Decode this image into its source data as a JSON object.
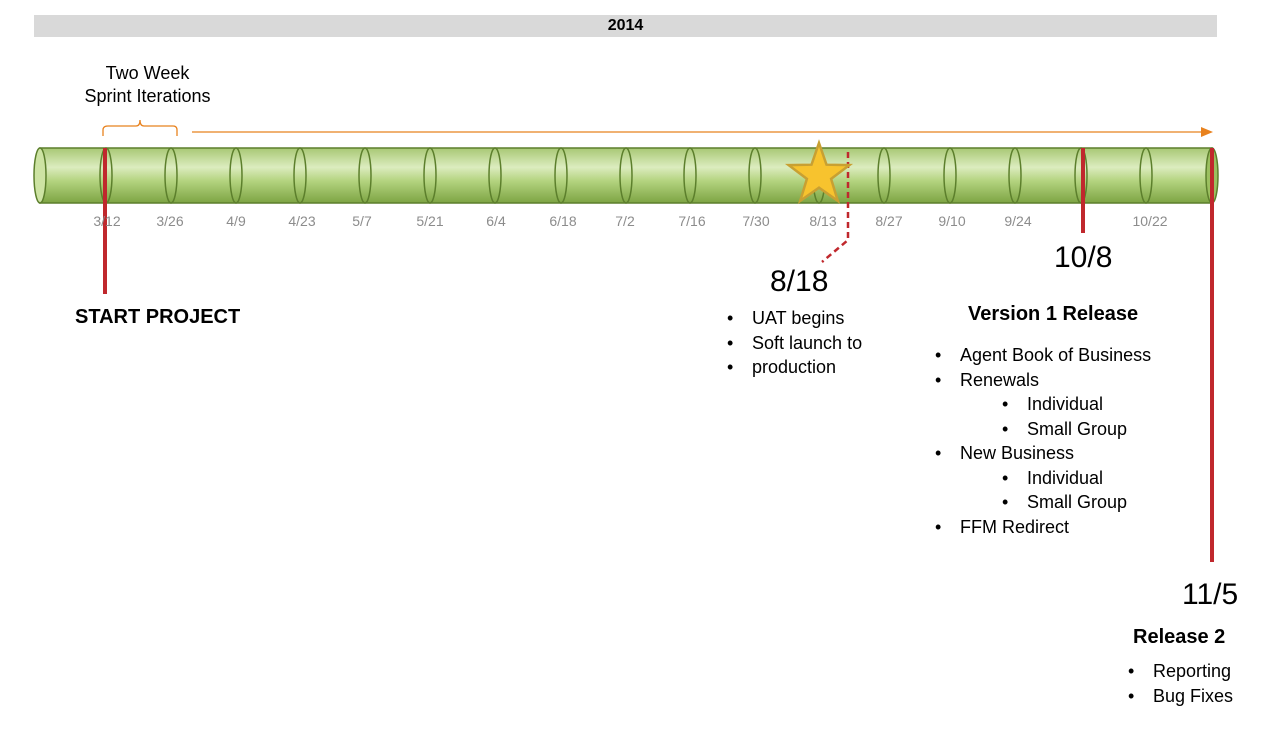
{
  "header": {
    "year": "2014"
  },
  "sprint": {
    "label_line1": "Two Week",
    "label_line2": "Sprint Iterations"
  },
  "timeline": {
    "tick_labels": [
      "3/12",
      "3/26",
      "4/9",
      "4/23",
      "5/7",
      "5/21",
      "6/4",
      "6/18",
      "7/2",
      "7/16",
      "7/30",
      "8/13",
      "8/27",
      "9/10",
      "9/24",
      "10/22"
    ]
  },
  "milestones": {
    "start": {
      "title": "START PROJECT"
    },
    "uat": {
      "date": "8/18",
      "items": [
        "UAT begins",
        "Soft launch to",
        "production"
      ]
    },
    "v1": {
      "date": "10/8",
      "title": "Version 1 Release",
      "items": [
        {
          "text": "Agent Book of Business",
          "level": 1
        },
        {
          "text": "Renewals",
          "level": 1
        },
        {
          "text": "Individual",
          "level": 2
        },
        {
          "text": "Small Group",
          "level": 2
        },
        {
          "text": "New Business",
          "level": 1
        },
        {
          "text": "Individual",
          "level": 2
        },
        {
          "text": "Small Group",
          "level": 2
        },
        {
          "text": "FFM Redirect",
          "level": 1
        }
      ]
    },
    "r2": {
      "date": "11/5",
      "title": "Release 2",
      "items": [
        "Reporting",
        "Bug Fixes"
      ]
    }
  },
  "colors": {
    "tube_light": "#d6e8b0",
    "tube_mid": "#9bc060",
    "tube_dark": "#5c7f2c",
    "milestone_red": "#c0282d",
    "arrow_orange": "#e8821e",
    "star_fill": "#f7c32e",
    "year_bar": "#d9d9d9"
  }
}
